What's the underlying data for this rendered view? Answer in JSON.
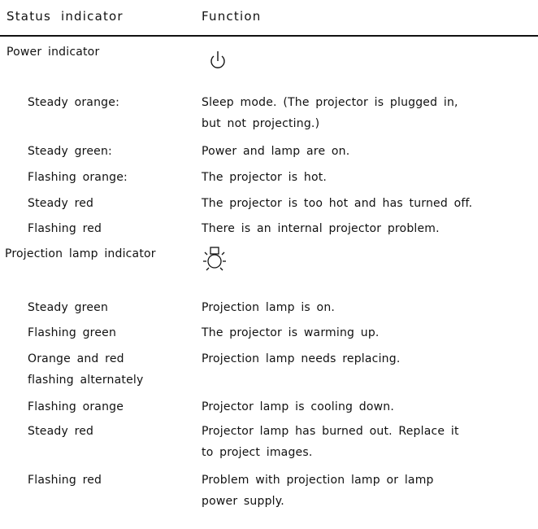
{
  "header": {
    "status": "Status indicator",
    "function": "Function"
  },
  "sections": [
    {
      "title": "Power indicator",
      "rows": [
        {
          "indicator": [
            "Steady orange:"
          ],
          "function": [
            "Sleep mode. (The projector is plugged in,",
            "but not projecting.)"
          ]
        },
        {
          "indicator": [
            "Steady green:"
          ],
          "function": [
            "Power and lamp are on."
          ]
        },
        {
          "indicator": [
            "Flashing orange:"
          ],
          "function": [
            "The projector is hot."
          ]
        },
        {
          "indicator": [
            "Steady red"
          ],
          "function": [
            "The projector is too hot and has turned off."
          ]
        },
        {
          "indicator": [
            "Flashing red"
          ],
          "function": [
            "There is an internal projector problem."
          ]
        }
      ]
    },
    {
      "title": "Projection lamp indicator",
      "rows": [
        {
          "indicator": [
            "Steady green"
          ],
          "function": [
            "Projection lamp is on."
          ]
        },
        {
          "indicator": [
            "Flashing green"
          ],
          "function": [
            "The projector is warming up."
          ]
        },
        {
          "indicator": [
            "Orange and red",
            "flashing alternately"
          ],
          "function": [
            "Projection lamp needs replacing."
          ]
        },
        {
          "indicator": [
            "Flashing orange"
          ],
          "function": [
            "Projector lamp is cooling down."
          ]
        },
        {
          "indicator": [
            "Steady red"
          ],
          "function": [
            "Projector lamp has burned out. Replace it",
            "to project images."
          ]
        },
        {
          "indicator": [
            "Flashing red"
          ],
          "function": [
            "Problem with projection lamp or lamp",
            "power supply."
          ]
        }
      ]
    }
  ]
}
